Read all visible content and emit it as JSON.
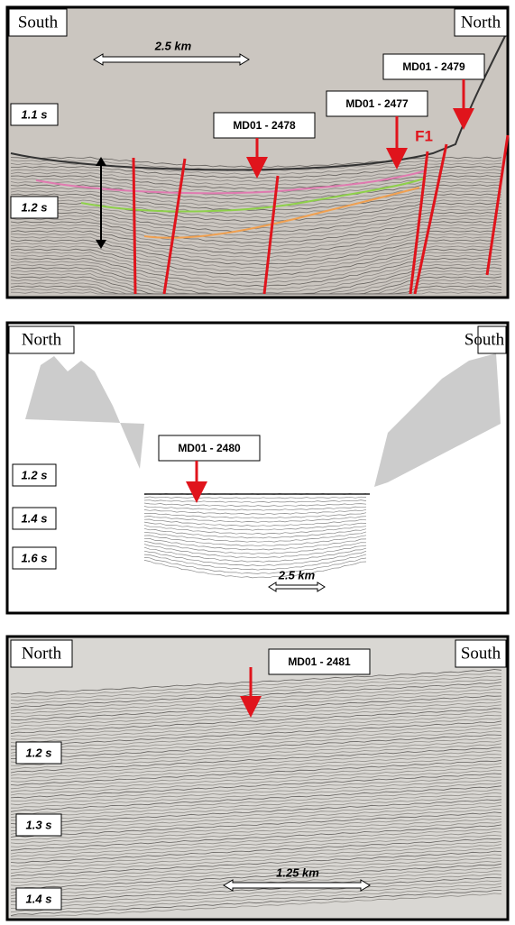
{
  "panels": [
    {
      "left_direction": "South",
      "right_direction": "North",
      "scale": "2.5 km",
      "time_labels": [
        "1.1 s",
        "1.2 s"
      ],
      "cores": [
        "MD01 - 2478",
        "MD01 - 2477",
        "MD01 - 2479"
      ],
      "fault": "F1"
    },
    {
      "left_direction": "North",
      "right_direction": "South",
      "scale": "2.5 km",
      "time_labels": [
        "1.2 s",
        "1.4 s",
        "1.6 s"
      ],
      "cores": [
        "MD01 - 2480"
      ]
    },
    {
      "left_direction": "North",
      "right_direction": "South",
      "scale": "1.25 km",
      "time_labels": [
        "1.2 s",
        "1.3 s",
        "1.4 s"
      ],
      "cores": [
        "MD01 - 2481"
      ]
    }
  ]
}
